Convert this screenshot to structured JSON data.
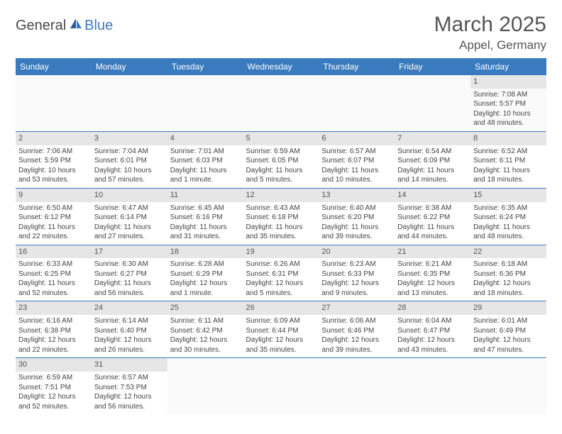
{
  "logo": {
    "general": "General",
    "blue": "Blue"
  },
  "header": {
    "month": "March 2025",
    "location": "Appel, Germany"
  },
  "weekdays": [
    "Sunday",
    "Monday",
    "Tuesday",
    "Wednesday",
    "Thursday",
    "Friday",
    "Saturday"
  ],
  "colors": {
    "header_bg": "#3a7bbf",
    "header_text": "#ffffff",
    "daynum_bg": "#e6e6e6",
    "border": "#3a7bbf",
    "text": "#444444"
  },
  "weeks": [
    [
      null,
      null,
      null,
      null,
      null,
      null,
      {
        "n": "1",
        "sr": "Sunrise: 7:08 AM",
        "ss": "Sunset: 5:57 PM",
        "d1": "Daylight: 10 hours",
        "d2": "and 48 minutes."
      }
    ],
    [
      {
        "n": "2",
        "sr": "Sunrise: 7:06 AM",
        "ss": "Sunset: 5:59 PM",
        "d1": "Daylight: 10 hours",
        "d2": "and 53 minutes."
      },
      {
        "n": "3",
        "sr": "Sunrise: 7:04 AM",
        "ss": "Sunset: 6:01 PM",
        "d1": "Daylight: 10 hours",
        "d2": "and 57 minutes."
      },
      {
        "n": "4",
        "sr": "Sunrise: 7:01 AM",
        "ss": "Sunset: 6:03 PM",
        "d1": "Daylight: 11 hours",
        "d2": "and 1 minute."
      },
      {
        "n": "5",
        "sr": "Sunrise: 6:59 AM",
        "ss": "Sunset: 6:05 PM",
        "d1": "Daylight: 11 hours",
        "d2": "and 5 minutes."
      },
      {
        "n": "6",
        "sr": "Sunrise: 6:57 AM",
        "ss": "Sunset: 6:07 PM",
        "d1": "Daylight: 11 hours",
        "d2": "and 10 minutes."
      },
      {
        "n": "7",
        "sr": "Sunrise: 6:54 AM",
        "ss": "Sunset: 6:09 PM",
        "d1": "Daylight: 11 hours",
        "d2": "and 14 minutes."
      },
      {
        "n": "8",
        "sr": "Sunrise: 6:52 AM",
        "ss": "Sunset: 6:11 PM",
        "d1": "Daylight: 11 hours",
        "d2": "and 18 minutes."
      }
    ],
    [
      {
        "n": "9",
        "sr": "Sunrise: 6:50 AM",
        "ss": "Sunset: 6:12 PM",
        "d1": "Daylight: 11 hours",
        "d2": "and 22 minutes."
      },
      {
        "n": "10",
        "sr": "Sunrise: 6:47 AM",
        "ss": "Sunset: 6:14 PM",
        "d1": "Daylight: 11 hours",
        "d2": "and 27 minutes."
      },
      {
        "n": "11",
        "sr": "Sunrise: 6:45 AM",
        "ss": "Sunset: 6:16 PM",
        "d1": "Daylight: 11 hours",
        "d2": "and 31 minutes."
      },
      {
        "n": "12",
        "sr": "Sunrise: 6:43 AM",
        "ss": "Sunset: 6:18 PM",
        "d1": "Daylight: 11 hours",
        "d2": "and 35 minutes."
      },
      {
        "n": "13",
        "sr": "Sunrise: 6:40 AM",
        "ss": "Sunset: 6:20 PM",
        "d1": "Daylight: 11 hours",
        "d2": "and 39 minutes."
      },
      {
        "n": "14",
        "sr": "Sunrise: 6:38 AM",
        "ss": "Sunset: 6:22 PM",
        "d1": "Daylight: 11 hours",
        "d2": "and 44 minutes."
      },
      {
        "n": "15",
        "sr": "Sunrise: 6:35 AM",
        "ss": "Sunset: 6:24 PM",
        "d1": "Daylight: 11 hours",
        "d2": "and 48 minutes."
      }
    ],
    [
      {
        "n": "16",
        "sr": "Sunrise: 6:33 AM",
        "ss": "Sunset: 6:25 PM",
        "d1": "Daylight: 11 hours",
        "d2": "and 52 minutes."
      },
      {
        "n": "17",
        "sr": "Sunrise: 6:30 AM",
        "ss": "Sunset: 6:27 PM",
        "d1": "Daylight: 11 hours",
        "d2": "and 56 minutes."
      },
      {
        "n": "18",
        "sr": "Sunrise: 6:28 AM",
        "ss": "Sunset: 6:29 PM",
        "d1": "Daylight: 12 hours",
        "d2": "and 1 minute."
      },
      {
        "n": "19",
        "sr": "Sunrise: 6:26 AM",
        "ss": "Sunset: 6:31 PM",
        "d1": "Daylight: 12 hours",
        "d2": "and 5 minutes."
      },
      {
        "n": "20",
        "sr": "Sunrise: 6:23 AM",
        "ss": "Sunset: 6:33 PM",
        "d1": "Daylight: 12 hours",
        "d2": "and 9 minutes."
      },
      {
        "n": "21",
        "sr": "Sunrise: 6:21 AM",
        "ss": "Sunset: 6:35 PM",
        "d1": "Daylight: 12 hours",
        "d2": "and 13 minutes."
      },
      {
        "n": "22",
        "sr": "Sunrise: 6:18 AM",
        "ss": "Sunset: 6:36 PM",
        "d1": "Daylight: 12 hours",
        "d2": "and 18 minutes."
      }
    ],
    [
      {
        "n": "23",
        "sr": "Sunrise: 6:16 AM",
        "ss": "Sunset: 6:38 PM",
        "d1": "Daylight: 12 hours",
        "d2": "and 22 minutes."
      },
      {
        "n": "24",
        "sr": "Sunrise: 6:14 AM",
        "ss": "Sunset: 6:40 PM",
        "d1": "Daylight: 12 hours",
        "d2": "and 26 minutes."
      },
      {
        "n": "25",
        "sr": "Sunrise: 6:11 AM",
        "ss": "Sunset: 6:42 PM",
        "d1": "Daylight: 12 hours",
        "d2": "and 30 minutes."
      },
      {
        "n": "26",
        "sr": "Sunrise: 6:09 AM",
        "ss": "Sunset: 6:44 PM",
        "d1": "Daylight: 12 hours",
        "d2": "and 35 minutes."
      },
      {
        "n": "27",
        "sr": "Sunrise: 6:06 AM",
        "ss": "Sunset: 6:46 PM",
        "d1": "Daylight: 12 hours",
        "d2": "and 39 minutes."
      },
      {
        "n": "28",
        "sr": "Sunrise: 6:04 AM",
        "ss": "Sunset: 6:47 PM",
        "d1": "Daylight: 12 hours",
        "d2": "and 43 minutes."
      },
      {
        "n": "29",
        "sr": "Sunrise: 6:01 AM",
        "ss": "Sunset: 6:49 PM",
        "d1": "Daylight: 12 hours",
        "d2": "and 47 minutes."
      }
    ],
    [
      {
        "n": "30",
        "sr": "Sunrise: 6:59 AM",
        "ss": "Sunset: 7:51 PM",
        "d1": "Daylight: 12 hours",
        "d2": "and 52 minutes."
      },
      {
        "n": "31",
        "sr": "Sunrise: 6:57 AM",
        "ss": "Sunset: 7:53 PM",
        "d1": "Daylight: 12 hours",
        "d2": "and 56 minutes."
      },
      null,
      null,
      null,
      null,
      null
    ]
  ]
}
